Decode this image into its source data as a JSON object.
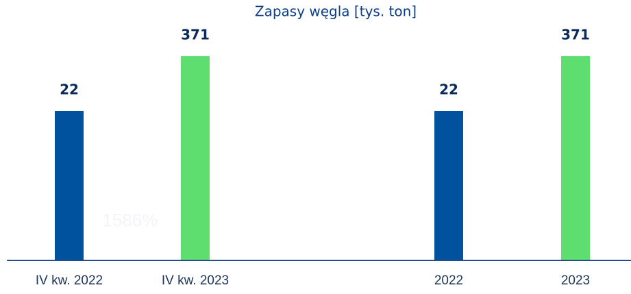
{
  "chart_data": {
    "type": "bar",
    "title": "Zapasy węgla [tys. ton]",
    "categories": [
      "IV kw. 2022",
      "IV kw. 2023",
      "2022",
      "2023"
    ],
    "values": [
      22,
      371,
      22,
      371
    ],
    "colors": [
      "#00529f",
      "#5ede6e",
      "#00529f",
      "#5ede6e"
    ],
    "log_scale": true,
    "ylim": [
      0.01,
      6700
    ],
    "annotation": "1586%"
  }
}
